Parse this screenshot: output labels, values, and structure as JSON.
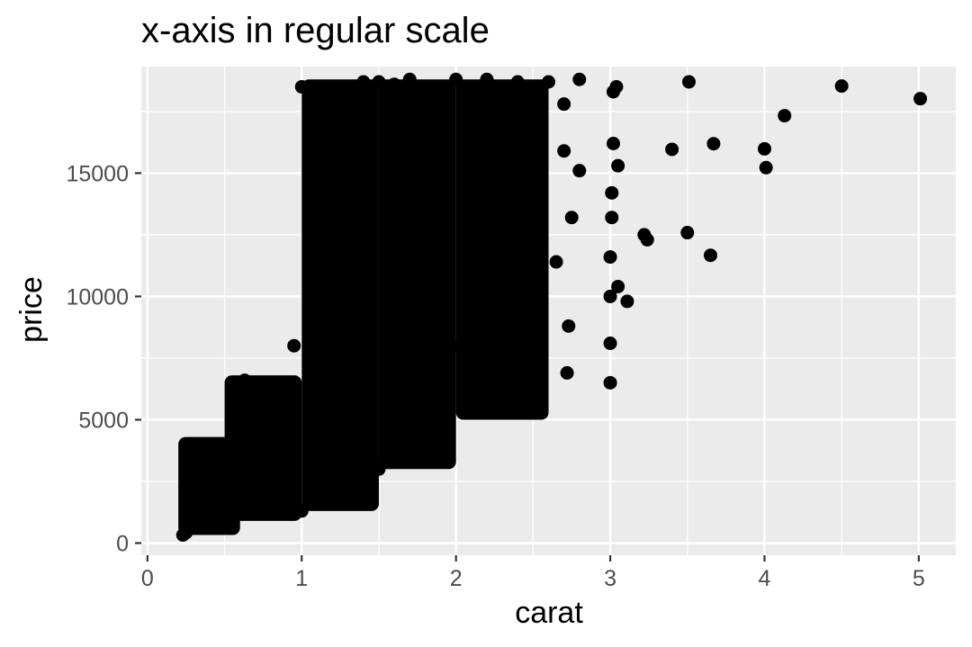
{
  "chart_data": {
    "type": "scatter",
    "title": "x-axis in regular scale",
    "xlabel": "carat",
    "ylabel": "price",
    "xlim": [
      -0.04,
      5.24
    ],
    "ylim": [
      -493,
      19320
    ],
    "xticks": [
      0,
      1,
      2,
      3,
      4,
      5
    ],
    "xtick_labels": [
      "0",
      "1",
      "2",
      "3",
      "4",
      "5"
    ],
    "yticks": [
      0,
      5000,
      10000,
      15000
    ],
    "ytick_labels": [
      "0",
      "5000",
      "10000",
      "15000"
    ],
    "grid": true,
    "legend": "none",
    "colors": {
      "panel": "#ebebeb",
      "grid": "#ffffff",
      "point": "#000000",
      "tick": "#333333"
    },
    "dense_regions": [
      {
        "x_range": [
          0.2,
          0.6
        ],
        "y_range": [
          326,
          4300
        ]
      },
      {
        "x_range": [
          0.5,
          1.0
        ],
        "y_range": [
          900,
          6800
        ]
      },
      {
        "x_range": [
          1.0,
          1.5
        ],
        "y_range": [
          1300,
          18800
        ]
      },
      {
        "x_range": [
          1.5,
          2.0
        ],
        "y_range": [
          3000,
          18800
        ]
      },
      {
        "x_range": [
          2.0,
          2.6
        ],
        "y_range": [
          5000,
          18800
        ]
      }
    ],
    "points": [
      [
        0.23,
        326
      ],
      [
        0.25,
        420
      ],
      [
        0.28,
        600
      ],
      [
        0.3,
        900
      ],
      [
        0.32,
        2400
      ],
      [
        0.35,
        1800
      ],
      [
        0.4,
        1200
      ],
      [
        0.45,
        2500
      ],
      [
        0.5,
        3500
      ],
      [
        0.55,
        4200
      ],
      [
        0.58,
        4900
      ],
      [
        0.63,
        6600
      ],
      [
        0.7,
        2800
      ],
      [
        0.8,
        4500
      ],
      [
        0.9,
        5500
      ],
      [
        0.95,
        8000
      ],
      [
        1.0,
        1300
      ],
      [
        1.0,
        18500
      ],
      [
        1.05,
        17800
      ],
      [
        1.1,
        16500
      ],
      [
        1.2,
        18200
      ],
      [
        1.25,
        17600
      ],
      [
        1.3,
        15000
      ],
      [
        1.4,
        18700
      ],
      [
        1.5,
        18700
      ],
      [
        1.5,
        3000
      ],
      [
        1.6,
        18600
      ],
      [
        1.7,
        18800
      ],
      [
        1.75,
        4700
      ],
      [
        1.8,
        5100
      ],
      [
        1.9,
        5100
      ],
      [
        1.95,
        9000
      ],
      [
        2.0,
        18800
      ],
      [
        2.0,
        8000
      ],
      [
        2.05,
        5600
      ],
      [
        2.1,
        9000
      ],
      [
        2.2,
        18800
      ],
      [
        2.3,
        5700
      ],
      [
        2.4,
        18700
      ],
      [
        2.5,
        6300
      ],
      [
        2.5,
        7900
      ],
      [
        2.5,
        8500
      ],
      [
        2.55,
        12500
      ],
      [
        2.6,
        18700
      ],
      [
        2.65,
        11400
      ],
      [
        2.7,
        17800
      ],
      [
        2.7,
        15900
      ],
      [
        2.72,
        6900
      ],
      [
        2.73,
        8800
      ],
      [
        2.8,
        18800
      ],
      [
        2.8,
        15100
      ],
      [
        2.75,
        13200
      ],
      [
        3.0,
        6500
      ],
      [
        3.0,
        8100
      ],
      [
        3.0,
        10000
      ],
      [
        3.0,
        11600
      ],
      [
        3.01,
        13200
      ],
      [
        3.01,
        14200
      ],
      [
        3.02,
        16200
      ],
      [
        3.02,
        18300
      ],
      [
        3.04,
        18500
      ],
      [
        3.05,
        15300
      ],
      [
        3.05,
        10400
      ],
      [
        3.11,
        9800
      ],
      [
        3.22,
        12500
      ],
      [
        3.24,
        12300
      ],
      [
        3.4,
        15964
      ],
      [
        3.5,
        12587
      ],
      [
        3.51,
        18701
      ],
      [
        3.65,
        11668
      ],
      [
        3.67,
        16193
      ],
      [
        4.0,
        15984
      ],
      [
        4.01,
        15223
      ],
      [
        4.13,
        17329
      ],
      [
        4.5,
        18531
      ],
      [
        5.01,
        18018
      ]
    ]
  }
}
